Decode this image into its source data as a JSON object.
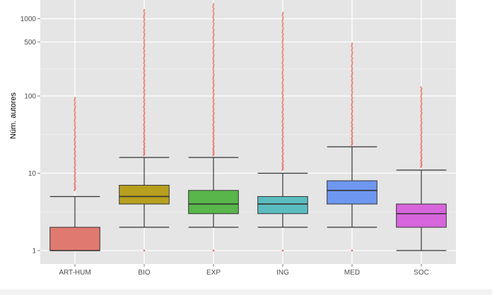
{
  "chart_data": {
    "type": "boxplot",
    "title": "",
    "xlabel": "",
    "ylabel": "Núm. autores",
    "yscale": "log",
    "ylim": [
      0.85,
      1600
    ],
    "yticks": [
      1,
      10,
      100,
      500,
      1000
    ],
    "ytick_labels": [
      "1",
      "10",
      "100",
      "500",
      "1000"
    ],
    "grid": true,
    "legend": "none",
    "categories": [
      "ART-HUM",
      "BIO",
      "EXP",
      "ING",
      "MED",
      "SOC"
    ],
    "boxes": [
      {
        "category": "ART-HUM",
        "color": "#e07a6f",
        "whisker_low": 1,
        "q1": 1,
        "median": 1,
        "q3": 2,
        "whisker_high": 5,
        "outlier_min": 6,
        "outlier_max": 95,
        "low_outliers": []
      },
      {
        "category": "BIO",
        "color": "#b7a01e",
        "whisker_low": 2,
        "q1": 4,
        "median": 5,
        "q3": 7,
        "whisker_high": 16,
        "outlier_min": 17,
        "outlier_max": 1300,
        "low_outliers": [
          1
        ]
      },
      {
        "category": "EXP",
        "color": "#58b64a",
        "whisker_low": 2,
        "q1": 3,
        "median": 4,
        "q3": 6,
        "whisker_high": 16,
        "outlier_min": 17,
        "outlier_max": 1550,
        "low_outliers": [
          1
        ]
      },
      {
        "category": "ING",
        "color": "#5bbcbf",
        "whisker_low": 2,
        "q1": 3,
        "median": 4,
        "q3": 5,
        "whisker_high": 10,
        "outlier_min": 11,
        "outlier_max": 1200,
        "low_outliers": [
          1
        ]
      },
      {
        "category": "MED",
        "color": "#6e97f0",
        "whisker_low": 2,
        "q1": 4,
        "median": 6,
        "q3": 8,
        "whisker_high": 22,
        "outlier_min": 23,
        "outlier_max": 480,
        "low_outliers": [
          1
        ]
      },
      {
        "category": "SOC",
        "color": "#d765dc",
        "whisker_low": 1,
        "q1": 2,
        "median": 3,
        "q3": 4,
        "whisker_high": 11,
        "outlier_min": 12,
        "outlier_max": 130,
        "low_outliers": []
      }
    ],
    "colors": {
      "panel_background": "#e5e5e5",
      "grid_major": "#ffffff",
      "grid_minor": "#f2f2f2",
      "outlier": "#e8675a",
      "box_border": "#333333"
    }
  }
}
